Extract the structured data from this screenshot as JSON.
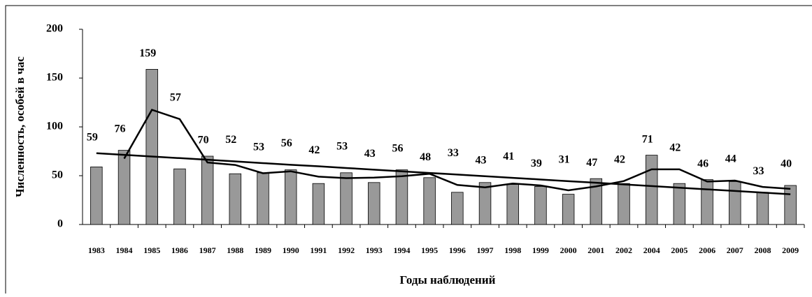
{
  "chart_data": {
    "type": "bar",
    "y_label": "Численность, особей в час",
    "x_label": "Годы наблюдений",
    "categories": [
      "1983",
      "1984",
      "1985",
      "1986",
      "1987",
      "1988",
      "1989",
      "1990",
      "1991",
      "1992",
      "1993",
      "1994",
      "1995",
      "1996",
      "1997",
      "1998",
      "1999",
      "2000",
      "2001",
      "2002",
      "2004",
      "2005",
      "2006",
      "2007",
      "2008",
      "2009"
    ],
    "values": [
      59,
      76,
      159,
      57,
      70,
      52,
      53,
      56,
      42,
      53,
      43,
      56,
      48,
      33,
      43,
      41,
      39,
      31,
      47,
      42,
      71,
      42,
      46,
      44,
      33,
      40
    ],
    "color": "#999999",
    "lines": [
      {
        "color": "#000000",
        "values": [
          null,
          67.5,
          117.5,
          108,
          63.5,
          61,
          52.5,
          54.5,
          49,
          47.5,
          48,
          49.5,
          52,
          40.5,
          38,
          42,
          40,
          35,
          39,
          44.5,
          56.5,
          56.5,
          44,
          45,
          38.5,
          36.5
        ]
      },
      {
        "color": "#000000",
        "values": [
          73,
          71.3,
          69.6,
          68,
          66.3,
          64.6,
          62.9,
          61.2,
          59.6,
          57.9,
          56.2,
          54.5,
          52.8,
          51.2,
          49.5,
          47.8,
          46.1,
          44.4,
          42.8,
          41.1,
          39.4,
          37.7,
          36,
          34.4,
          32.7,
          31
        ]
      }
    ],
    "ylim": [
      0,
      200
    ],
    "yticks": [
      0,
      50,
      100,
      150,
      200
    ]
  }
}
